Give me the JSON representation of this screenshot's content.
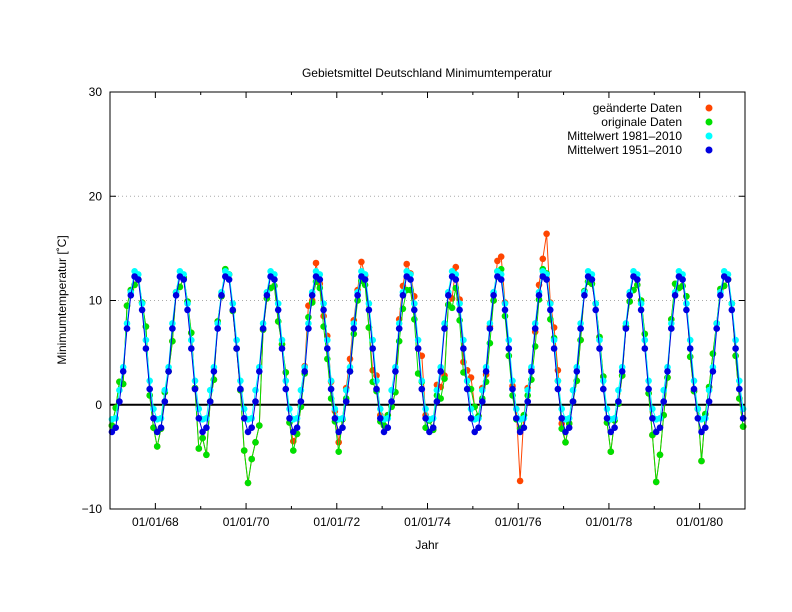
{
  "chart_data": {
    "type": "line",
    "title": "Gebietsmittel Deutschland Minimumtemperatur",
    "xlabel": "Jahr",
    "ylabel": "Minimumtemperatur [˚C]",
    "xlim": [
      1967.0,
      1981.0
    ],
    "ylim": [
      -10,
      30
    ],
    "yticks": [
      -10,
      0,
      10,
      20,
      30
    ],
    "xticks": [
      {
        "x": 1968,
        "label": "01/01/68"
      },
      {
        "x": 1970,
        "label": "01/01/70"
      },
      {
        "x": 1972,
        "label": "01/01/72"
      },
      {
        "x": 1974,
        "label": "01/01/74"
      },
      {
        "x": 1976,
        "label": "01/01/76"
      },
      {
        "x": 1978,
        "label": "01/01/78"
      },
      {
        "x": 1980,
        "label": "01/01/80"
      }
    ],
    "grid": "horizontal dotted",
    "zero_line": true,
    "legend_position": "top-right",
    "start_year": 1967,
    "climatology_1981_2010": [
      -1.4,
      -1.3,
      1.4,
      3.6,
      7.8,
      10.8,
      12.8,
      12.5,
      9.7,
      6.2,
      2.3,
      -0.4
    ],
    "climatology_1951_2010": [
      -2.6,
      -2.2,
      0.3,
      3.2,
      7.3,
      10.5,
      12.3,
      12.0,
      9.1,
      5.4,
      1.5,
      -1.3
    ],
    "series": [
      {
        "name": "geänderte Daten",
        "color": "#ff4500",
        "values": [
          -2.0,
          -0.3,
          2.2,
          2.0,
          9.5,
          11.0,
          11.5,
          12.0,
          9.8,
          7.5,
          0.9,
          -2.2,
          -4.0,
          -2.3,
          1.2,
          3.2,
          6.1,
          10.8,
          11.3,
          12.2,
          9.9,
          6.9,
          1.6,
          -4.2,
          -3.2,
          -4.8,
          0.3,
          2.4,
          8.0,
          10.4,
          13.0,
          12.5,
          9.0,
          5.4,
          1.4,
          -4.4,
          -7.5,
          -5.2,
          -3.6,
          -2.0,
          7.2,
          10.2,
          11.2,
          11.4,
          8.0,
          5.8,
          3.1,
          -1.7,
          -3.5,
          -2.8,
          -0.2,
          3.7,
          9.5,
          10.0,
          13.6,
          11.6,
          8.5,
          6.6,
          2.2,
          -0.6,
          -3.6,
          -1.4,
          1.6,
          4.4,
          8.1,
          11.0,
          13.7,
          12.4,
          7.4,
          3.3,
          2.8,
          -1.0,
          -2.0,
          -1.0,
          -0.2,
          1.2,
          8.2,
          11.4,
          13.5,
          12.6,
          10.4,
          5.4,
          4.7,
          -1.0,
          -1.5,
          -2.4,
          1.9,
          1.7,
          2.8,
          9.6,
          10.2,
          13.2,
          10.1,
          4.1,
          3.3,
          2.6,
          -0.2,
          -1.1,
          1.6,
          2.9,
          7.5,
          10.0,
          13.8,
          14.2,
          9.8,
          4.7,
          1.8,
          -0.4,
          -7.3,
          -1.0,
          1.6,
          3.4,
          7.0,
          11.5,
          14.0,
          16.4,
          9.8,
          7.4,
          3.3,
          -1.8,
          -3.6,
          -1.8,
          0.3,
          2.3,
          6.2,
          10.9,
          11.8,
          11.6,
          9.7,
          6.5,
          2.7,
          -1.7,
          -4.5,
          -1.5,
          0.1,
          2.8,
          7.5,
          9.9,
          11.0,
          11.5,
          10.0,
          6.8,
          1.1,
          -2.9,
          -7.4,
          -4.8,
          -1.0,
          2.6,
          8.2,
          11.6,
          11.2,
          11.4,
          10.4,
          4.6,
          1.3,
          -0.4,
          -5.4,
          -0.9,
          1.7,
          4.9,
          7.8,
          11.1,
          11.4,
          12.0,
          9.7,
          4.7,
          0.6,
          -2.1
        ]
      },
      {
        "name": "originale Daten",
        "color": "#00e000",
        "values": [
          -2.0,
          -0.3,
          2.2,
          2.0,
          9.5,
          11.0,
          11.5,
          12.0,
          9.8,
          7.5,
          0.9,
          -2.2,
          -4.0,
          -2.3,
          1.2,
          3.2,
          6.1,
          10.8,
          11.3,
          12.2,
          9.9,
          6.9,
          1.6,
          -4.2,
          -3.2,
          -4.8,
          0.3,
          2.4,
          8.0,
          10.4,
          13.0,
          12.5,
          9.0,
          5.4,
          1.4,
          -4.4,
          -7.5,
          -5.2,
          -3.6,
          -2.0,
          7.2,
          10.2,
          11.2,
          11.4,
          8.0,
          5.8,
          3.1,
          -1.7,
          -4.4,
          -2.8,
          -0.2,
          3.0,
          8.4,
          9.8,
          11.8,
          11.2,
          7.5,
          4.4,
          0.6,
          -1.6,
          -4.5,
          -1.4,
          0.6,
          3.2,
          6.8,
          10.0,
          11.9,
          11.5,
          7.4,
          2.2,
          1.3,
          -1.6,
          -2.0,
          -1.0,
          -0.2,
          1.2,
          6.1,
          9.2,
          11.0,
          11.0,
          8.2,
          3.0,
          2.2,
          -2.2,
          -1.5,
          -2.4,
          0.9,
          0.6,
          2.5,
          9.6,
          9.3,
          11.2,
          8.1,
          3.1,
          2.3,
          1.5,
          -0.2,
          -1.1,
          0.6,
          2.2,
          5.9,
          10.0,
          12.8,
          13.0,
          8.5,
          4.7,
          0.9,
          -1.4,
          -2.3,
          -1.0,
          0.9,
          2.4,
          5.6,
          10.1,
          13.0,
          12.6,
          8.2,
          6.4,
          2.3,
          -2.3,
          -3.6,
          -1.8,
          0.3,
          2.3,
          6.2,
          10.9,
          11.8,
          11.6,
          9.7,
          6.5,
          2.7,
          -1.7,
          -4.5,
          -1.5,
          0.1,
          2.8,
          7.5,
          9.9,
          11.0,
          11.5,
          10.0,
          6.8,
          1.1,
          -2.9,
          -7.4,
          -4.8,
          -1.0,
          2.6,
          8.2,
          11.6,
          11.2,
          11.4,
          10.4,
          4.6,
          1.3,
          -0.4,
          -5.4,
          -0.9,
          1.7,
          4.9,
          7.8,
          11.1,
          11.4,
          12.0,
          9.7,
          4.7,
          0.6,
          -2.1
        ]
      },
      {
        "name": "Mittelwert 1981–2010",
        "color": "#00ffff",
        "source": "climatology_1981_2010"
      },
      {
        "name": "Mittelwert 1951–2010",
        "color": "#0000e0",
        "source": "climatology_1951_2010"
      }
    ]
  }
}
